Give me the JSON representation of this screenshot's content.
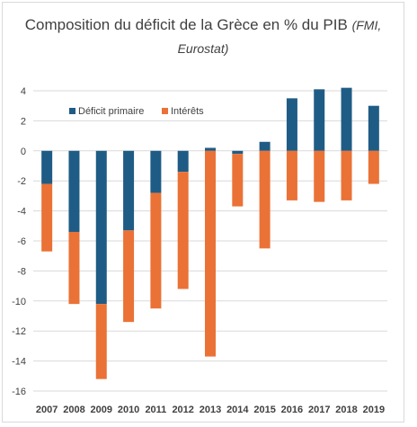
{
  "chart_data": {
    "type": "bar",
    "stacked": true,
    "title": "Composition du déficit de la Grèce en % du PIB",
    "subtitle": "(FMI, Eurostat)",
    "categories": [
      "2007",
      "2008",
      "2009",
      "2010",
      "2011",
      "2012",
      "2013",
      "2014",
      "2015",
      "2016",
      "2017",
      "2018",
      "2019"
    ],
    "series": [
      {
        "name": "Déficit primaire",
        "color": "#1f5c85",
        "values": [
          -2.2,
          -5.4,
          -10.2,
          -5.3,
          -2.8,
          -1.4,
          0.2,
          -0.2,
          0.6,
          3.5,
          4.1,
          4.2,
          3.0
        ]
      },
      {
        "name": "Intérêts",
        "color": "#ea7236",
        "values": [
          -4.5,
          -4.8,
          -5.0,
          -6.1,
          -7.7,
          -7.8,
          -13.7,
          -3.5,
          -6.5,
          -3.3,
          -3.4,
          -3.3,
          -2.2
        ]
      }
    ],
    "ylim": [
      -16,
      4
    ],
    "yticks": [
      4,
      2,
      0,
      -2,
      -4,
      -6,
      -8,
      -10,
      -12,
      -14,
      -16
    ],
    "grid": true,
    "legend": "top-left"
  }
}
